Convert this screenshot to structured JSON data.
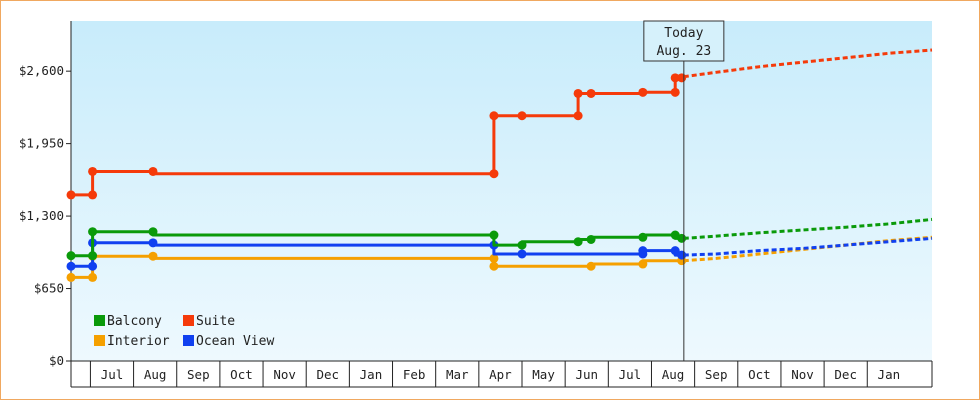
{
  "chart_data": {
    "type": "line",
    "y_ticks": [
      {
        "value": 0,
        "label": "$0"
      },
      {
        "value": 650,
        "label": "$650"
      },
      {
        "value": 1300,
        "label": "$1,300"
      },
      {
        "value": 1950,
        "label": "$1,950"
      },
      {
        "value": 2600,
        "label": "$2,600"
      }
    ],
    "ylim": [
      0,
      3050
    ],
    "x_months": [
      {
        "label": "Jul",
        "x": 6.5
      },
      {
        "label": "Aug",
        "x": 7.5
      },
      {
        "label": "Sep",
        "x": 8.5
      },
      {
        "label": "Oct",
        "x": 9.5
      },
      {
        "label": "Nov",
        "x": 10.5
      },
      {
        "label": "Dec",
        "x": 11.5
      },
      {
        "label": "Jan",
        "x": 12.5
      },
      {
        "label": "Feb",
        "x": 13.5
      },
      {
        "label": "Mar",
        "x": 14.5
      },
      {
        "label": "Apr",
        "x": 15.5
      },
      {
        "label": "May",
        "x": 16.5
      },
      {
        "label": "Jun",
        "x": 17.5
      },
      {
        "label": "Jul",
        "x": 18.5
      },
      {
        "label": "Aug",
        "x": 19.5
      },
      {
        "label": "Sep",
        "x": 20.5
      },
      {
        "label": "Oct",
        "x": 21.5
      },
      {
        "label": "Nov",
        "x": 22.5
      },
      {
        "label": "Dec",
        "x": 23.5
      },
      {
        "label": "Jan",
        "x": 24.5
      }
    ],
    "xlim": [
      5.55,
      25.5
    ],
    "today": {
      "line1": "Today",
      "line2": "Aug. 23",
      "x": 19.75
    },
    "legend": {
      "placement": "bottom-left"
    },
    "series": [
      {
        "name": "Balcony",
        "color": "#0a9a0a",
        "steps": [
          [
            5.55,
            945
          ],
          [
            6.05,
            945
          ],
          [
            6.05,
            1160
          ],
          [
            7.45,
            1160
          ],
          [
            7.45,
            1130
          ],
          [
            15.35,
            1130
          ],
          [
            15.35,
            1040
          ],
          [
            16.0,
            1040
          ],
          [
            16.0,
            1070
          ],
          [
            17.3,
            1070
          ],
          [
            17.3,
            1090
          ],
          [
            17.6,
            1090
          ],
          [
            17.6,
            1110
          ],
          [
            18.8,
            1110
          ],
          [
            18.8,
            1130
          ],
          [
            19.55,
            1130
          ],
          [
            19.55,
            1100
          ],
          [
            19.75,
            1100
          ]
        ],
        "points": [
          [
            5.55,
            945
          ],
          [
            6.05,
            945
          ],
          [
            6.05,
            1160
          ],
          [
            7.45,
            1160
          ],
          [
            15.35,
            1130
          ],
          [
            16.0,
            1040
          ],
          [
            17.3,
            1070
          ],
          [
            17.6,
            1090
          ],
          [
            18.8,
            1110
          ],
          [
            19.55,
            1130
          ],
          [
            19.7,
            1100
          ]
        ],
        "forecast": [
          [
            19.75,
            1100
          ],
          [
            20.5,
            1120
          ],
          [
            21.5,
            1150
          ],
          [
            22.5,
            1175
          ],
          [
            23.5,
            1200
          ],
          [
            24.5,
            1230
          ],
          [
            25.5,
            1270
          ]
        ]
      },
      {
        "name": "Suite",
        "color": "#f53a0a",
        "steps": [
          [
            5.55,
            1490
          ],
          [
            6.05,
            1490
          ],
          [
            6.05,
            1700
          ],
          [
            7.45,
            1700
          ],
          [
            7.45,
            1680
          ],
          [
            15.35,
            1680
          ],
          [
            15.35,
            2200
          ],
          [
            16.0,
            2200
          ],
          [
            16.0,
            2200
          ],
          [
            17.3,
            2200
          ],
          [
            17.3,
            2400
          ],
          [
            17.6,
            2400
          ],
          [
            17.6,
            2400
          ],
          [
            18.8,
            2400
          ],
          [
            18.8,
            2410
          ],
          [
            19.55,
            2410
          ],
          [
            19.55,
            2540
          ],
          [
            19.75,
            2540
          ]
        ],
        "points": [
          [
            5.55,
            1490
          ],
          [
            6.05,
            1490
          ],
          [
            6.05,
            1700
          ],
          [
            7.45,
            1700
          ],
          [
            15.35,
            1680
          ],
          [
            15.35,
            2200
          ],
          [
            16.0,
            2200
          ],
          [
            17.3,
            2200
          ],
          [
            17.3,
            2400
          ],
          [
            17.6,
            2400
          ],
          [
            18.8,
            2410
          ],
          [
            19.55,
            2410
          ],
          [
            19.55,
            2540
          ],
          [
            19.7,
            2540
          ]
        ],
        "forecast": [
          [
            19.75,
            2550
          ],
          [
            20.5,
            2590
          ],
          [
            21.5,
            2640
          ],
          [
            22.5,
            2680
          ],
          [
            23.5,
            2720
          ],
          [
            24.5,
            2760
          ],
          [
            25.5,
            2790
          ]
        ]
      },
      {
        "name": "Interior",
        "color": "#f5a000",
        "steps": [
          [
            5.55,
            750
          ],
          [
            6.05,
            750
          ],
          [
            6.05,
            940
          ],
          [
            7.45,
            940
          ],
          [
            7.45,
            920
          ],
          [
            15.35,
            920
          ],
          [
            15.35,
            850
          ],
          [
            17.6,
            850
          ],
          [
            17.6,
            870
          ],
          [
            18.8,
            870
          ],
          [
            18.8,
            900
          ],
          [
            19.75,
            900
          ]
        ],
        "points": [
          [
            5.55,
            750
          ],
          [
            6.05,
            750
          ],
          [
            6.05,
            940
          ],
          [
            7.45,
            940
          ],
          [
            15.35,
            920
          ],
          [
            15.35,
            850
          ],
          [
            17.6,
            850
          ],
          [
            18.8,
            870
          ],
          [
            19.7,
            900
          ]
        ],
        "forecast": [
          [
            19.75,
            900
          ],
          [
            20.5,
            920
          ],
          [
            21.5,
            960
          ],
          [
            22.5,
            1000
          ],
          [
            23.5,
            1040
          ],
          [
            24.5,
            1080
          ],
          [
            25.5,
            1110
          ]
        ]
      },
      {
        "name": "Ocean View",
        "color": "#1040f0",
        "steps": [
          [
            5.55,
            850
          ],
          [
            6.05,
            850
          ],
          [
            6.05,
            1060
          ],
          [
            7.45,
            1060
          ],
          [
            7.45,
            1040
          ],
          [
            15.35,
            1040
          ],
          [
            15.35,
            960
          ],
          [
            16.0,
            960
          ],
          [
            16.0,
            960
          ],
          [
            18.8,
            960
          ],
          [
            18.8,
            990
          ],
          [
            19.55,
            990
          ],
          [
            19.55,
            950
          ],
          [
            19.75,
            950
          ]
        ],
        "points": [
          [
            5.55,
            850
          ],
          [
            6.05,
            850
          ],
          [
            6.05,
            1060
          ],
          [
            7.45,
            1060
          ],
          [
            15.35,
            1040
          ],
          [
            16.0,
            960
          ],
          [
            18.8,
            960
          ],
          [
            18.8,
            990
          ],
          [
            19.55,
            990
          ],
          [
            19.7,
            950
          ]
        ],
        "forecast": [
          [
            19.75,
            950
          ],
          [
            20.5,
            960
          ],
          [
            21.5,
            990
          ],
          [
            22.5,
            1010
          ],
          [
            23.5,
            1040
          ],
          [
            24.5,
            1070
          ],
          [
            25.5,
            1100
          ]
        ]
      }
    ]
  }
}
